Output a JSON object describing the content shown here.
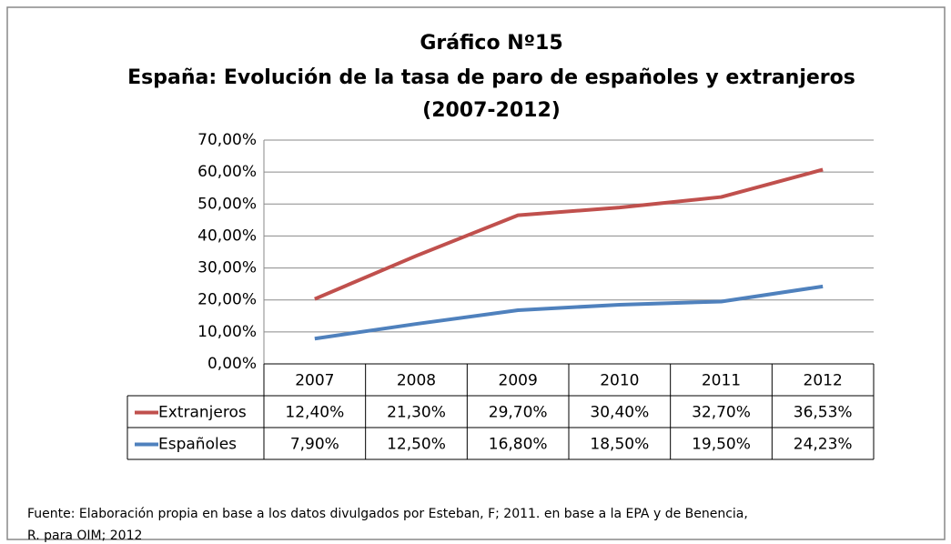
{
  "chart_data": {
    "type": "line",
    "stacked": true,
    "title": "Gráfico Nº15",
    "subtitle": "España: Evolución de la tasa de paro de españoles y extranjeros",
    "period": "(2007-2012)",
    "categories": [
      "2007",
      "2008",
      "2009",
      "2010",
      "2011",
      "2012"
    ],
    "series": [
      {
        "name": "Extranjeros",
        "color": "#c0504d",
        "values": [
          12.4,
          21.3,
          29.7,
          30.4,
          32.7,
          36.53
        ],
        "value_labels": [
          "12,40%",
          "21,30%",
          "29,70%",
          "30,40%",
          "32,70%",
          "36,53%"
        ]
      },
      {
        "name": "Españoles",
        "color": "#4f81bd",
        "values": [
          7.9,
          12.5,
          16.8,
          18.5,
          19.5,
          24.23
        ],
        "value_labels": [
          "7,90%",
          "12,50%",
          "16,80%",
          "18,50%",
          "19,50%",
          "24,23%"
        ]
      }
    ],
    "ylim": [
      0,
      70
    ],
    "yticks": [
      {
        "value": 0,
        "label": "0,00%"
      },
      {
        "value": 10,
        "label": "10,00%"
      },
      {
        "value": 20,
        "label": "20,00%"
      },
      {
        "value": 30,
        "label": "30,00%"
      },
      {
        "value": 40,
        "label": "40,00%"
      },
      {
        "value": 50,
        "label": "50,00%"
      },
      {
        "value": 60,
        "label": "60,00%"
      },
      {
        "value": 70,
        "label": "70,00%"
      }
    ],
    "grid": true,
    "source": [
      "Fuente: Elaboración propia en base a los datos divulgados por Esteban, F; 2011. en base a la EPA y de Benencia,",
      "R. para OIM; 2012"
    ]
  }
}
